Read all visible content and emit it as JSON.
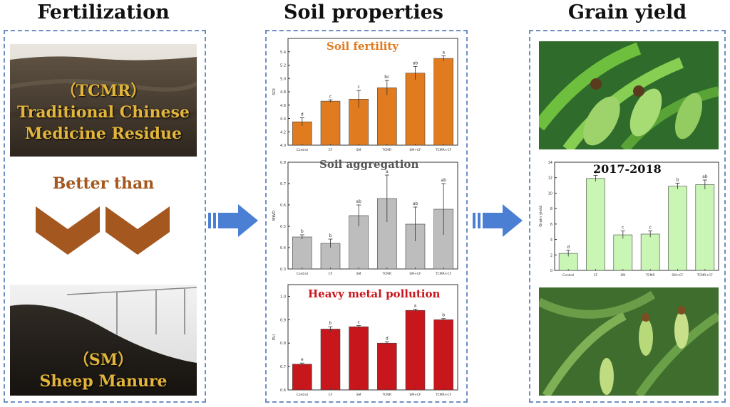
{
  "headings": {
    "fertilization": "Fertilization",
    "soil_properties": "Soil properties",
    "grain_yield": "Grain yield"
  },
  "fertilization": {
    "tcmr_abbr": "（TCMR）",
    "tcmr_line1": "Traditional Chinese",
    "tcmr_line2": "Medicine Residue",
    "comparison": "Better than",
    "sm_abbr": "（SM）",
    "sm_name": "Sheep Manure"
  },
  "colors": {
    "dashed_border": "#6f8fc4",
    "arrow_blue": "#4a7fd4",
    "chevron_brown": "#a4571f",
    "fertility_bar": "#e07b1f",
    "aggregation_bar": "#bdbdbd",
    "metal_bar": "#c8161d",
    "yield_bar": "#c9f5b5",
    "photo_text": "#e3b53a"
  },
  "chart_data": [
    {
      "type": "bar",
      "title": "Soil fertility",
      "title_color": "#e07b1f",
      "categories": [
        "Control",
        "CF",
        "SM",
        "TCMR",
        "SM+CF",
        "TCMR+CF"
      ],
      "values": [
        4.35,
        4.66,
        4.69,
        4.86,
        5.08,
        5.3
      ],
      "errors": [
        0.06,
        0.02,
        0.13,
        0.11,
        0.1,
        0.04
      ],
      "letters": [
        "d",
        "c",
        "c",
        "bc",
        "ab",
        "a"
      ],
      "ylim": [
        4.0,
        5.6
      ],
      "yticks": [
        "4.0",
        "4.2",
        "4.4",
        "4.6",
        "4.8",
        "5.0",
        "5.2",
        "5.4"
      ],
      "ylabel": "SOI",
      "bar_color": "#e07b1f"
    },
    {
      "type": "bar",
      "title": "Soil aggregation",
      "title_color": "#555555",
      "categories": [
        "Control",
        "CF",
        "SM",
        "TCMR",
        "SM+CF",
        "TCMR+CF"
      ],
      "values": [
        0.45,
        0.42,
        0.55,
        0.63,
        0.51,
        0.58
      ],
      "errors": [
        0.01,
        0.02,
        0.05,
        0.11,
        0.08,
        0.12
      ],
      "letters": [
        "b",
        "b",
        "ab",
        "a",
        "ab",
        "ab"
      ],
      "ylim": [
        0.3,
        0.8
      ],
      "yticks": [
        "0.3",
        "0.4",
        "0.5",
        "0.6",
        "0.7",
        "0.8"
      ],
      "ylabel": "MWD",
      "bar_color": "#bdbdbd"
    },
    {
      "type": "bar",
      "title": "Heavy metal pollution",
      "title_color": "#c8161d",
      "categories": [
        "Control",
        "CF",
        "SM",
        "TCMR",
        "SM+CF",
        "TCMR+CF"
      ],
      "values": [
        0.71,
        0.86,
        0.87,
        0.8,
        0.94,
        0.9
      ],
      "errors": [
        0.005,
        0.01,
        0.005,
        0.005,
        0.005,
        0.005
      ],
      "letters": [
        "e",
        "b",
        "c",
        "d",
        "a",
        "b"
      ],
      "ylim": [
        0.6,
        1.05
      ],
      "yticks": [
        "0.6",
        "0.7",
        "0.8",
        "0.9",
        "1.0"
      ],
      "ylabel": "PLI",
      "bar_color": "#c8161d"
    },
    {
      "type": "bar",
      "title": "2017-2018",
      "title_color": "#111111",
      "categories": [
        "Control",
        "CF",
        "SM",
        "TCMR",
        "SM+CF",
        "TCMR+CF"
      ],
      "values": [
        2.2,
        11.9,
        4.6,
        4.7,
        10.9,
        11.1
      ],
      "errors": [
        0.4,
        0.4,
        0.5,
        0.4,
        0.4,
        0.6
      ],
      "letters": [
        "d",
        "a",
        "c",
        "c",
        "b",
        "ab"
      ],
      "ylim": [
        0,
        14
      ],
      "yticks": [
        "0",
        "2",
        "4",
        "6",
        "8",
        "10",
        "12",
        "14"
      ],
      "ylabel": "Grain yield",
      "bar_color": "#c9f5b5"
    }
  ]
}
